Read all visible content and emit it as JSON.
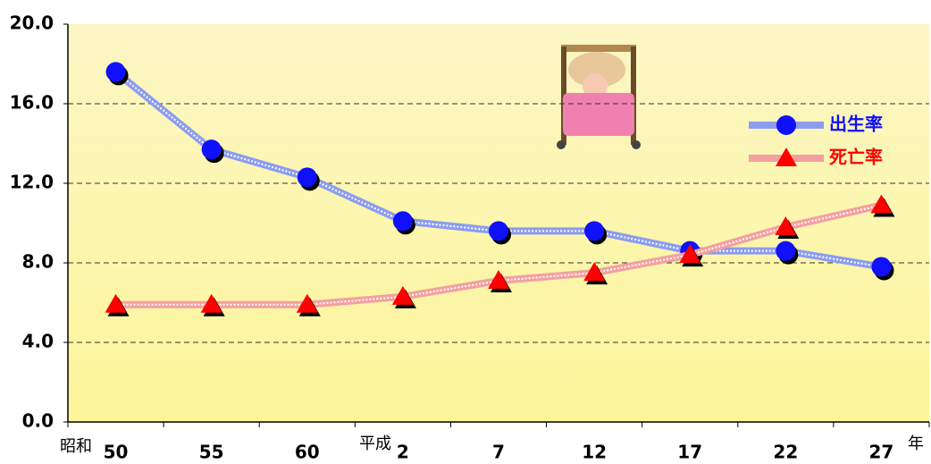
{
  "chart_data": {
    "type": "line",
    "categories": [
      "50",
      "55",
      "60",
      "2",
      "7",
      "12",
      "17",
      "22",
      "27"
    ],
    "series": [
      {
        "name": "出生率",
        "color": "#1010ff",
        "values": [
          17.6,
          13.7,
          12.3,
          10.1,
          9.6,
          9.6,
          8.6,
          8.6,
          7.8
        ]
      },
      {
        "name": "死亡率",
        "color": "#ff0000",
        "values": [
          5.9,
          5.9,
          5.9,
          6.3,
          7.1,
          7.5,
          8.4,
          9.8,
          10.9
        ]
      }
    ],
    "ylim": [
      0,
      20
    ],
    "yticks": [
      {
        "value": 0,
        "label": "0.0"
      },
      {
        "value": 4,
        "label": "4.0"
      },
      {
        "value": 8,
        "label": "8.0"
      },
      {
        "value": 12,
        "label": "12.0"
      },
      {
        "value": 16,
        "label": "16.0"
      },
      {
        "value": 20,
        "label": "20.0"
      }
    ],
    "grid": true,
    "legend": "upper right",
    "annotations": [
      {
        "text": "昭和"
      },
      {
        "text": "平成"
      },
      {
        "text": "年"
      }
    ]
  }
}
